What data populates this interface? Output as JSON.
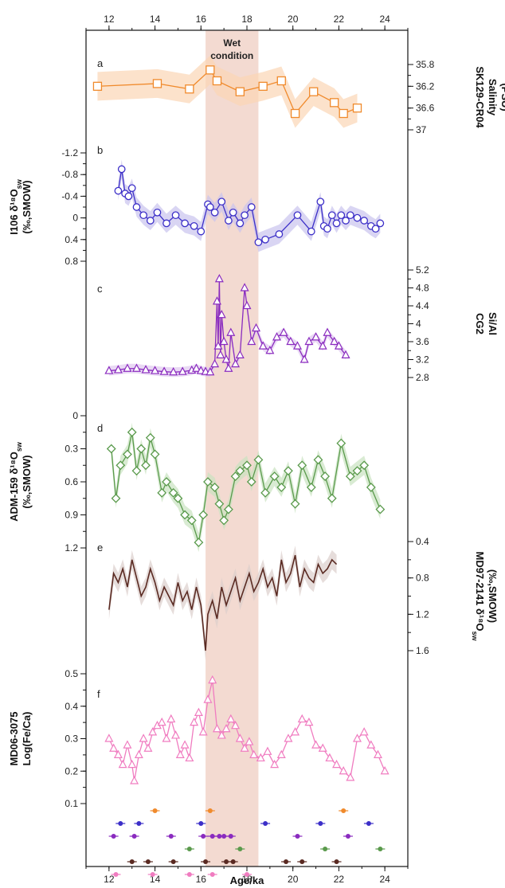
{
  "chart_data": {
    "type": "line",
    "x_axis": {
      "label": "Age/ka",
      "range": [
        11,
        25
      ],
      "ticks": [
        12,
        14,
        16,
        18,
        20,
        22,
        24
      ]
    },
    "shaded_region": {
      "label_line1": "Wet",
      "label_line2": "condition",
      "x_range": [
        16.2,
        18.5
      ],
      "color": "#efcdc2"
    },
    "panels": [
      {
        "id": "a",
        "side": "right",
        "color": "#f08a2c",
        "band": "#fbd6b5",
        "marker": "square",
        "label_lines": [
          "SK129-CR04",
          "Salinity",
          "(PSU)"
        ],
        "tick_labels": [
          "35.8",
          "36.2",
          "36.6",
          "37"
        ],
        "ticks": [
          35.8,
          36.2,
          36.6,
          37.0
        ],
        "reversed": true,
        "y_range": [
          35.6,
          37.0
        ],
        "x": [
          11.5,
          14.1,
          15.5,
          16.4,
          16.7,
          17.7,
          18.7,
          19.5,
          20.1,
          20.9,
          21.8,
          22.2,
          22.8
        ],
        "y": [
          36.2,
          36.15,
          36.25,
          35.9,
          36.1,
          36.3,
          36.2,
          36.1,
          36.7,
          36.3,
          36.5,
          36.7,
          36.6
        ]
      },
      {
        "id": "b",
        "side": "left",
        "color": "#3c2fc8",
        "band": "#c9c3ee",
        "marker": "circle",
        "label_lines": [
          "I106  δ¹⁸O",
          "(‰,SMOW)"
        ],
        "label_sub": "sw",
        "tick_labels": [
          "-1.2",
          "-0.8",
          "-0.4",
          "0",
          "0.4",
          "0.8"
        ],
        "ticks": [
          -1.2,
          -0.8,
          -0.4,
          0,
          0.4,
          0.8
        ],
        "reversed": true,
        "y_range": [
          -1.4,
          0.9
        ],
        "x": [
          12.4,
          12.55,
          12.7,
          12.85,
          13.0,
          13.2,
          13.5,
          13.8,
          14.1,
          14.5,
          14.9,
          15.3,
          15.7,
          16.0,
          16.3,
          16.4,
          16.6,
          16.9,
          17.2,
          17.4,
          17.7,
          17.9,
          18.2,
          18.5,
          18.8,
          19.4,
          20.2,
          20.8,
          21.2,
          21.35,
          21.5,
          21.7,
          21.9,
          22.1,
          22.3,
          22.5,
          22.8,
          23.1,
          23.4,
          23.6,
          23.8
        ],
        "y": [
          -0.5,
          -0.9,
          -0.45,
          -0.4,
          -0.55,
          -0.2,
          -0.05,
          0.05,
          -0.1,
          0.1,
          -0.05,
          0.1,
          0.15,
          0.25,
          -0.25,
          -0.2,
          -0.1,
          -0.3,
          0.05,
          -0.1,
          0.1,
          -0.05,
          -0.2,
          0.45,
          0.4,
          0.3,
          -0.05,
          0.25,
          -0.3,
          0.15,
          0.2,
          -0.05,
          0.1,
          -0.05,
          0.05,
          -0.05,
          0.0,
          0.05,
          0.15,
          0.2,
          0.1
        ]
      },
      {
        "id": "c",
        "side": "right",
        "color": "#8a2bbf",
        "band": "#e0c9ef",
        "marker": "triangle",
        "label_lines": [
          "CG2",
          "Si/Al"
        ],
        "tick_labels": [
          "2.8",
          "3.2",
          "3.6",
          "4",
          "4.4",
          "4.8",
          "5.2"
        ],
        "ticks": [
          2.8,
          3.2,
          3.6,
          4.0,
          4.4,
          4.8,
          5.2
        ],
        "reversed": false,
        "y_range": [
          2.6,
          5.4
        ],
        "x": [
          12.0,
          12.4,
          12.8,
          13.2,
          13.6,
          14.0,
          14.4,
          14.8,
          15.2,
          15.6,
          15.8,
          16.0,
          16.2,
          16.4,
          16.6,
          16.7,
          16.75,
          16.8,
          16.85,
          16.9,
          17.0,
          17.1,
          17.2,
          17.3,
          17.5,
          17.7,
          17.9,
          18.0,
          18.2,
          18.4,
          18.7,
          19.0,
          19.3,
          19.6,
          19.9,
          20.2,
          20.5,
          20.7,
          21.0,
          21.3,
          21.5,
          21.8,
          22.0,
          22.3
        ],
        "y": [
          2.95,
          2.97,
          3.0,
          3.0,
          2.97,
          2.95,
          2.93,
          2.92,
          2.93,
          2.96,
          3.0,
          2.95,
          2.93,
          2.92,
          3.1,
          4.5,
          3.5,
          5.0,
          3.3,
          4.2,
          3.6,
          3.2,
          3.0,
          3.8,
          3.1,
          3.3,
          4.8,
          4.4,
          3.6,
          3.9,
          3.5,
          3.4,
          3.7,
          3.8,
          3.6,
          3.5,
          3.2,
          3.6,
          3.7,
          3.5,
          3.8,
          3.6,
          3.5,
          3.3
        ]
      },
      {
        "id": "d",
        "side": "left",
        "color": "#5a9a4c",
        "band": "#c9e2c1",
        "marker": "diamond",
        "label_lines": [
          "ADM-159 δ¹⁸O",
          "(‰,SMOW)"
        ],
        "label_sub": "sw",
        "tick_labels": [
          "0",
          "0.3",
          "0.6",
          "0.9",
          "1.2"
        ],
        "ticks": [
          0,
          0.3,
          0.6,
          0.9,
          1.2
        ],
        "reversed": true,
        "y_range": [
          0,
          1.2
        ],
        "x": [
          12.1,
          12.3,
          12.5,
          12.8,
          13.0,
          13.2,
          13.4,
          13.6,
          13.8,
          14.0,
          14.3,
          14.5,
          14.8,
          15.0,
          15.3,
          15.6,
          15.9,
          16.1,
          16.3,
          16.6,
          16.8,
          17.0,
          17.2,
          17.5,
          17.7,
          18.0,
          18.2,
          18.5,
          18.8,
          19.2,
          19.5,
          19.8,
          20.1,
          20.4,
          20.8,
          21.1,
          21.4,
          21.7,
          22.1,
          22.5,
          22.8,
          23.1,
          23.4,
          23.8
        ],
        "y": [
          0.3,
          0.75,
          0.45,
          0.35,
          0.15,
          0.5,
          0.3,
          0.45,
          0.2,
          0.35,
          0.7,
          0.6,
          0.7,
          0.75,
          0.9,
          0.95,
          1.15,
          0.9,
          0.6,
          0.65,
          0.8,
          0.95,
          0.85,
          0.55,
          0.5,
          0.45,
          0.6,
          0.4,
          0.7,
          0.55,
          0.65,
          0.5,
          0.8,
          0.45,
          0.65,
          0.4,
          0.55,
          0.75,
          0.25,
          0.55,
          0.5,
          0.45,
          0.65,
          0.85
        ]
      },
      {
        "id": "e",
        "side": "right",
        "color": "#5a2a22",
        "band": "#dccfcc",
        "marker": "none",
        "label_lines": [
          "MD97-2141 δ¹⁸O",
          "(‰,SMOW)"
        ],
        "label_sub": "sw",
        "tick_labels": [
          "0.4",
          "0.8",
          "1.2",
          "1.6"
        ],
        "ticks": [
          0.4,
          0.8,
          1.2,
          1.6
        ],
        "reversed": true,
        "y_range": [
          0.4,
          1.6
        ],
        "x": [
          12.0,
          12.2,
          12.4,
          12.6,
          12.8,
          13.0,
          13.2,
          13.4,
          13.6,
          13.8,
          14.0,
          14.2,
          14.4,
          14.6,
          14.8,
          15.0,
          15.2,
          15.4,
          15.6,
          15.8,
          16.0,
          16.1,
          16.2,
          16.3,
          16.5,
          16.7,
          16.9,
          17.1,
          17.3,
          17.5,
          17.7,
          17.9,
          18.1,
          18.3,
          18.5,
          18.7,
          18.9,
          19.1,
          19.3,
          19.5,
          19.7,
          19.9,
          20.1,
          20.3,
          20.5,
          20.7,
          20.9,
          21.1,
          21.3,
          21.5,
          21.7,
          21.9
        ],
        "y": [
          1.15,
          0.75,
          0.85,
          0.7,
          0.9,
          0.6,
          0.8,
          1.0,
          0.9,
          0.7,
          0.85,
          1.05,
          0.9,
          1.0,
          1.1,
          0.85,
          1.05,
          0.95,
          1.15,
          0.9,
          1.1,
          1.35,
          1.6,
          1.2,
          1.05,
          1.25,
          0.9,
          1.1,
          0.95,
          0.8,
          1.05,
          0.9,
          0.75,
          0.95,
          0.85,
          0.7,
          0.9,
          0.8,
          1.0,
          0.6,
          0.85,
          0.75,
          0.55,
          0.9,
          0.7,
          0.8,
          0.85,
          0.65,
          0.75,
          0.7,
          0.6,
          0.65
        ]
      },
      {
        "id": "f",
        "side": "left",
        "color": "#f07cc0",
        "band": "none",
        "marker": "triangle",
        "label_lines": [
          "MD06-3075",
          "Log(Fe/Ca)"
        ],
        "tick_labels": [
          "0.1",
          "0.2",
          "0.3",
          "0.4",
          "0.5"
        ],
        "ticks": [
          0.1,
          0.2,
          0.3,
          0.4,
          0.5
        ],
        "reversed": false,
        "y_range": [
          0.1,
          0.5
        ],
        "x": [
          12.0,
          12.2,
          12.4,
          12.6,
          12.8,
          13.0,
          13.1,
          13.3,
          13.5,
          13.7,
          13.9,
          14.1,
          14.3,
          14.5,
          14.7,
          14.9,
          15.1,
          15.3,
          15.5,
          15.7,
          15.9,
          16.1,
          16.3,
          16.5,
          16.7,
          16.9,
          17.1,
          17.3,
          17.5,
          17.7,
          17.9,
          18.1,
          18.3,
          18.6,
          18.9,
          19.2,
          19.5,
          19.8,
          20.1,
          20.4,
          20.7,
          21.0,
          21.3,
          21.6,
          21.9,
          22.2,
          22.5,
          22.8,
          23.1,
          23.4,
          23.7,
          24.0
        ],
        "y": [
          0.3,
          0.27,
          0.25,
          0.22,
          0.28,
          0.22,
          0.17,
          0.25,
          0.3,
          0.27,
          0.32,
          0.34,
          0.35,
          0.3,
          0.36,
          0.31,
          0.25,
          0.28,
          0.24,
          0.35,
          0.38,
          0.32,
          0.42,
          0.48,
          0.33,
          0.31,
          0.33,
          0.36,
          0.34,
          0.3,
          0.27,
          0.29,
          0.25,
          0.24,
          0.26,
          0.22,
          0.25,
          0.3,
          0.32,
          0.36,
          0.35,
          0.28,
          0.27,
          0.24,
          0.22,
          0.2,
          0.18,
          0.3,
          0.32,
          0.28,
          0.25,
          0.2
        ]
      }
    ],
    "age_control_rows": [
      {
        "color": "#f08a2c",
        "ages": [
          14.0,
          16.4,
          22.2
        ]
      },
      {
        "color": "#3c2fc8",
        "ages": [
          12.5,
          13.3,
          16.0,
          18.8,
          21.2,
          23.3
        ]
      },
      {
        "color": "#8a2bbf",
        "ages": [
          12.2,
          13.1,
          14.7,
          16.1,
          16.5,
          16.8,
          17.0,
          17.3,
          20.2,
          22.4
        ]
      },
      {
        "color": "#5a9a4c",
        "ages": [
          15.5,
          17.7,
          21.4,
          23.8
        ]
      },
      {
        "color": "#5a2a22",
        "ages": [
          13.0,
          13.7,
          14.8,
          16.2,
          17.1,
          17.4,
          19.7,
          20.4,
          21.9
        ]
      },
      {
        "color": "#f07cc0",
        "ages": [
          12.3,
          13.9,
          15.5,
          16.5,
          18.0
        ]
      }
    ]
  }
}
